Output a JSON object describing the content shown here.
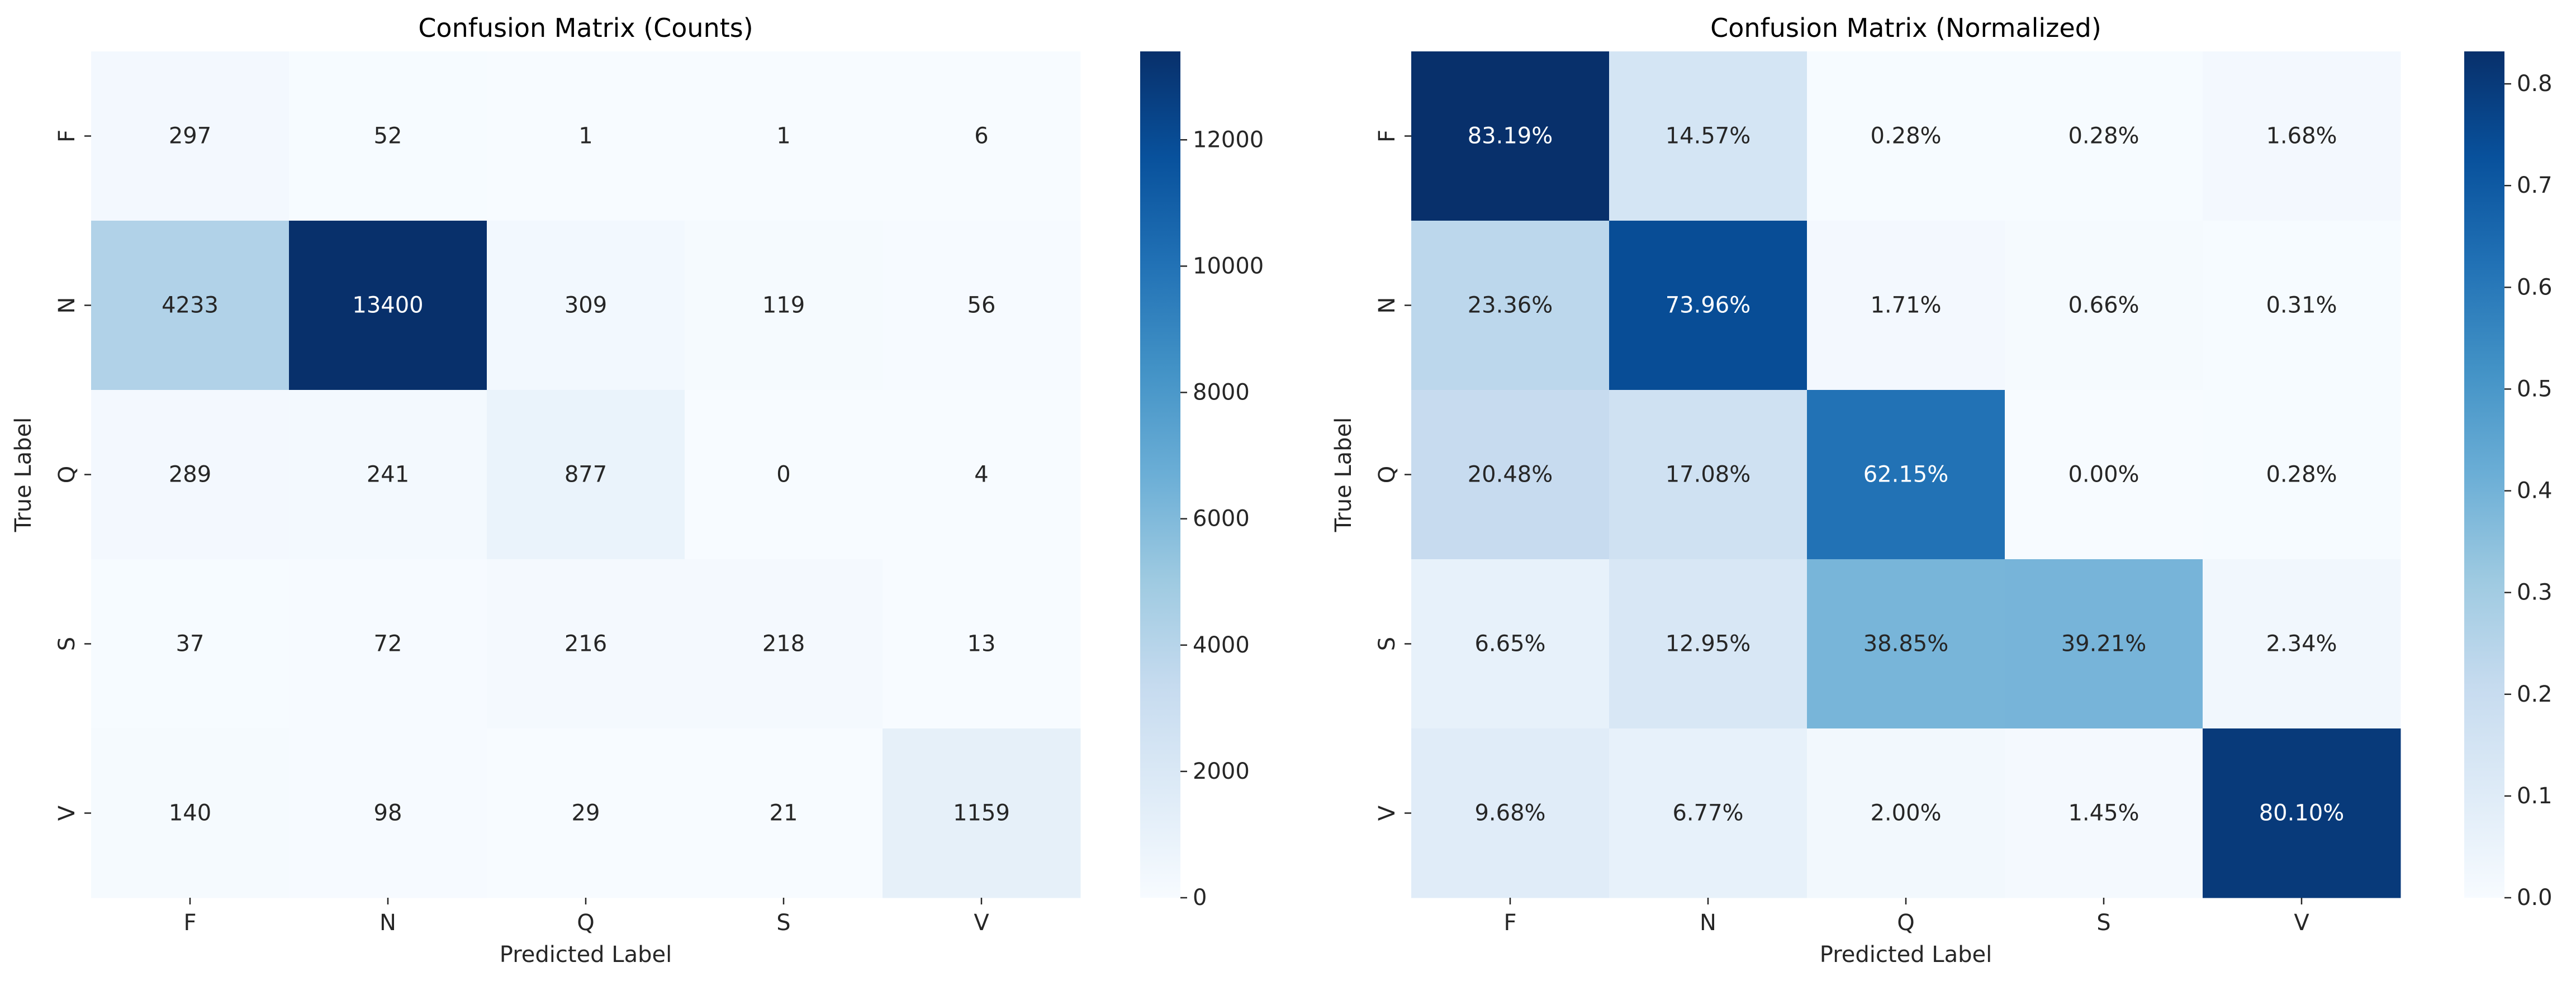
{
  "chart_data": [
    {
      "type": "heatmap",
      "title": "Confusion Matrix (Counts)",
      "xlabel": "Predicted Label",
      "ylabel": "True Label",
      "x_categories": [
        "F",
        "N",
        "Q",
        "S",
        "V"
      ],
      "y_categories": [
        "F",
        "N",
        "Q",
        "S",
        "V"
      ],
      "values": [
        [
          297,
          52,
          1,
          1,
          6
        ],
        [
          4233,
          13400,
          309,
          119,
          56
        ],
        [
          289,
          241,
          877,
          0,
          4
        ],
        [
          37,
          72,
          216,
          218,
          13
        ],
        [
          140,
          98,
          29,
          21,
          1159
        ]
      ],
      "cell_labels": [
        [
          "297",
          "52",
          "1",
          "1",
          "6"
        ],
        [
          "4233",
          "13400",
          "309",
          "119",
          "56"
        ],
        [
          "289",
          "241",
          "877",
          "0",
          "4"
        ],
        [
          "37",
          "72",
          "216",
          "218",
          "13"
        ],
        [
          "140",
          "98",
          "29",
          "21",
          "1159"
        ]
      ],
      "colormap": "Blues",
      "vmin": 0,
      "vmax": 13400,
      "colorbar_ticks": [
        0,
        2000,
        4000,
        6000,
        8000,
        10000,
        12000
      ],
      "colorbar_tick_labels": [
        "0",
        "2000",
        "4000",
        "6000",
        "8000",
        "10000",
        "12000"
      ]
    },
    {
      "type": "heatmap",
      "title": "Confusion Matrix (Normalized)",
      "xlabel": "Predicted Label",
      "ylabel": "True Label",
      "x_categories": [
        "F",
        "N",
        "Q",
        "S",
        "V"
      ],
      "y_categories": [
        "F",
        "N",
        "Q",
        "S",
        "V"
      ],
      "values": [
        [
          0.8319,
          0.1457,
          0.0028,
          0.0028,
          0.0168
        ],
        [
          0.2336,
          0.7396,
          0.0171,
          0.0066,
          0.0031
        ],
        [
          0.2048,
          0.1708,
          0.6215,
          0.0,
          0.0028
        ],
        [
          0.0665,
          0.1295,
          0.3885,
          0.3921,
          0.0234
        ],
        [
          0.0968,
          0.0677,
          0.02,
          0.0145,
          0.801
        ]
      ],
      "cell_labels": [
        [
          "83.19%",
          "14.57%",
          "0.28%",
          "0.28%",
          "1.68%"
        ],
        [
          "23.36%",
          "73.96%",
          "1.71%",
          "0.66%",
          "0.31%"
        ],
        [
          "20.48%",
          "17.08%",
          "62.15%",
          "0.00%",
          "0.28%"
        ],
        [
          "6.65%",
          "12.95%",
          "38.85%",
          "39.21%",
          "2.34%"
        ],
        [
          "9.68%",
          "6.77%",
          "2.00%",
          "1.45%",
          "80.10%"
        ]
      ],
      "colormap": "Blues",
      "vmin": 0,
      "vmax": 0.8319,
      "colorbar_ticks": [
        0.0,
        0.1,
        0.2,
        0.3,
        0.4,
        0.5,
        0.6,
        0.7,
        0.8
      ],
      "colorbar_tick_labels": [
        "0.0",
        "0.1",
        "0.2",
        "0.3",
        "0.4",
        "0.5",
        "0.6",
        "0.7",
        "0.8"
      ]
    }
  ]
}
